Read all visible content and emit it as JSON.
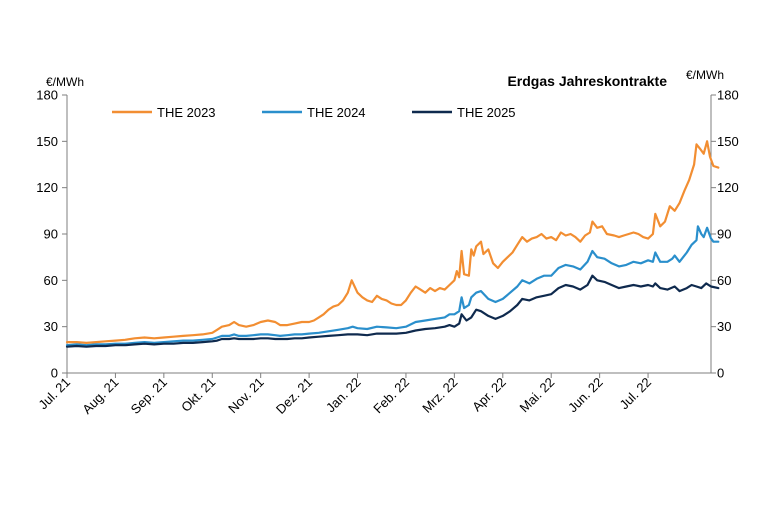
{
  "chart_data": {
    "type": "line",
    "title": "Erdgas Jahreskontrakte",
    "ylabel_left": "€/MWh",
    "ylabel_right": "€/MWh",
    "ylim": [
      0,
      180
    ],
    "yticks": [
      0,
      30,
      60,
      90,
      120,
      150,
      180
    ],
    "grid": false,
    "legend_placement": "top-left",
    "x_categories": [
      "Jul. 21",
      "Aug. 21",
      "Sep. 21",
      "Okt. 21",
      "Nov. 21",
      "Dez. 21",
      "Jan. 22",
      "Feb. 22",
      "Mrz. 22",
      "Apr. 22",
      "Mai. 22",
      "Jun. 22",
      "Jul. 22"
    ],
    "x_end": 13.3,
    "series": [
      {
        "name": "THE 2023",
        "color": "#f28e32",
        "points": [
          [
            0.0,
            20
          ],
          [
            0.2,
            20
          ],
          [
            0.4,
            19.5
          ],
          [
            0.6,
            20
          ],
          [
            0.8,
            20.5
          ],
          [
            1.0,
            21
          ],
          [
            1.2,
            21.5
          ],
          [
            1.4,
            22.5
          ],
          [
            1.6,
            23
          ],
          [
            1.8,
            22.5
          ],
          [
            2.0,
            23
          ],
          [
            2.2,
            23.5
          ],
          [
            2.4,
            24
          ],
          [
            2.6,
            24.5
          ],
          [
            2.8,
            25
          ],
          [
            3.0,
            26
          ],
          [
            3.1,
            28
          ],
          [
            3.2,
            30
          ],
          [
            3.35,
            31
          ],
          [
            3.45,
            33
          ],
          [
            3.55,
            31
          ],
          [
            3.7,
            30
          ],
          [
            3.85,
            31
          ],
          [
            4.0,
            33
          ],
          [
            4.15,
            34
          ],
          [
            4.3,
            33
          ],
          [
            4.4,
            31
          ],
          [
            4.55,
            31
          ],
          [
            4.7,
            32
          ],
          [
            4.85,
            33
          ],
          [
            5.0,
            33
          ],
          [
            5.1,
            34
          ],
          [
            5.2,
            36
          ],
          [
            5.3,
            38
          ],
          [
            5.4,
            41
          ],
          [
            5.5,
            43
          ],
          [
            5.6,
            44
          ],
          [
            5.7,
            47
          ],
          [
            5.8,
            52
          ],
          [
            5.88,
            60
          ],
          [
            5.94,
            56
          ],
          [
            6.0,
            52
          ],
          [
            6.1,
            49
          ],
          [
            6.2,
            47
          ],
          [
            6.3,
            46
          ],
          [
            6.4,
            50
          ],
          [
            6.5,
            48
          ],
          [
            6.6,
            47
          ],
          [
            6.7,
            45
          ],
          [
            6.8,
            44
          ],
          [
            6.9,
            44
          ],
          [
            7.0,
            47
          ],
          [
            7.1,
            52
          ],
          [
            7.2,
            56
          ],
          [
            7.3,
            54
          ],
          [
            7.4,
            52
          ],
          [
            7.5,
            55
          ],
          [
            7.6,
            53
          ],
          [
            7.7,
            55
          ],
          [
            7.8,
            54
          ],
          [
            7.9,
            57
          ],
          [
            8.0,
            60
          ],
          [
            8.05,
            66
          ],
          [
            8.1,
            62
          ],
          [
            8.15,
            79
          ],
          [
            8.2,
            64
          ],
          [
            8.3,
            63
          ],
          [
            8.35,
            80
          ],
          [
            8.4,
            76
          ],
          [
            8.45,
            82
          ],
          [
            8.55,
            85
          ],
          [
            8.6,
            77
          ],
          [
            8.7,
            80
          ],
          [
            8.8,
            71
          ],
          [
            8.9,
            68
          ],
          [
            9.0,
            72
          ],
          [
            9.1,
            75
          ],
          [
            9.2,
            78
          ],
          [
            9.3,
            83
          ],
          [
            9.4,
            88
          ],
          [
            9.5,
            85
          ],
          [
            9.6,
            87
          ],
          [
            9.7,
            88
          ],
          [
            9.8,
            90
          ],
          [
            9.9,
            87
          ],
          [
            10.0,
            88
          ],
          [
            10.1,
            86
          ],
          [
            10.2,
            91
          ],
          [
            10.3,
            89
          ],
          [
            10.4,
            90
          ],
          [
            10.5,
            88
          ],
          [
            10.6,
            85
          ],
          [
            10.7,
            89
          ],
          [
            10.8,
            91
          ],
          [
            10.85,
            98
          ],
          [
            10.95,
            94
          ],
          [
            11.05,
            95
          ],
          [
            11.15,
            90
          ],
          [
            11.3,
            89
          ],
          [
            11.4,
            88
          ],
          [
            11.5,
            89
          ],
          [
            11.6,
            90
          ],
          [
            11.7,
            91
          ],
          [
            11.8,
            90
          ],
          [
            11.9,
            88
          ],
          [
            12.0,
            87
          ],
          [
            12.1,
            90
          ],
          [
            12.15,
            103
          ],
          [
            12.25,
            95
          ],
          [
            12.35,
            98
          ],
          [
            12.45,
            108
          ],
          [
            12.55,
            105
          ],
          [
            12.65,
            110
          ],
          [
            12.75,
            118
          ],
          [
            12.85,
            125
          ],
          [
            12.95,
            135
          ],
          [
            13.0,
            148
          ],
          [
            13.08,
            145
          ],
          [
            13.15,
            142
          ],
          [
            13.22,
            150
          ],
          [
            13.28,
            140
          ],
          [
            13.35,
            134
          ],
          [
            13.45,
            133
          ]
        ]
      },
      {
        "name": "THE 2024",
        "color": "#2a8fcc",
        "points": [
          [
            0.0,
            18
          ],
          [
            0.2,
            18.5
          ],
          [
            0.4,
            18
          ],
          [
            0.6,
            18.5
          ],
          [
            0.8,
            18.5
          ],
          [
            1.0,
            19
          ],
          [
            1.2,
            19
          ],
          [
            1.4,
            19.5
          ],
          [
            1.6,
            20
          ],
          [
            1.8,
            19.5
          ],
          [
            2.0,
            20
          ],
          [
            2.2,
            20.5
          ],
          [
            2.4,
            21
          ],
          [
            2.6,
            21
          ],
          [
            2.8,
            21.5
          ],
          [
            3.0,
            22
          ],
          [
            3.1,
            23
          ],
          [
            3.2,
            24
          ],
          [
            3.35,
            24
          ],
          [
            3.45,
            25
          ],
          [
            3.55,
            24
          ],
          [
            3.7,
            24
          ],
          [
            3.85,
            24.5
          ],
          [
            4.0,
            25
          ],
          [
            4.15,
            25
          ],
          [
            4.3,
            24.5
          ],
          [
            4.4,
            24
          ],
          [
            4.55,
            24.5
          ],
          [
            4.7,
            25
          ],
          [
            4.85,
            25
          ],
          [
            5.0,
            25.5
          ],
          [
            5.2,
            26
          ],
          [
            5.4,
            27
          ],
          [
            5.6,
            28
          ],
          [
            5.8,
            29
          ],
          [
            5.9,
            30
          ],
          [
            6.0,
            29
          ],
          [
            6.2,
            28.5
          ],
          [
            6.4,
            30
          ],
          [
            6.6,
            29.5
          ],
          [
            6.8,
            29
          ],
          [
            7.0,
            30
          ],
          [
            7.2,
            33
          ],
          [
            7.4,
            34
          ],
          [
            7.6,
            35
          ],
          [
            7.8,
            36
          ],
          [
            7.9,
            38
          ],
          [
            8.0,
            38
          ],
          [
            8.1,
            40
          ],
          [
            8.15,
            49
          ],
          [
            8.2,
            42
          ],
          [
            8.3,
            44
          ],
          [
            8.35,
            49
          ],
          [
            8.45,
            52
          ],
          [
            8.55,
            53
          ],
          [
            8.7,
            48
          ],
          [
            8.85,
            46
          ],
          [
            9.0,
            48
          ],
          [
            9.15,
            52
          ],
          [
            9.3,
            56
          ],
          [
            9.4,
            60
          ],
          [
            9.55,
            58
          ],
          [
            9.7,
            61
          ],
          [
            9.85,
            63
          ],
          [
            10.0,
            63
          ],
          [
            10.15,
            68
          ],
          [
            10.3,
            70
          ],
          [
            10.45,
            69
          ],
          [
            10.6,
            67
          ],
          [
            10.75,
            72
          ],
          [
            10.85,
            79
          ],
          [
            10.95,
            75
          ],
          [
            11.1,
            74
          ],
          [
            11.25,
            71
          ],
          [
            11.4,
            69
          ],
          [
            11.55,
            70
          ],
          [
            11.7,
            72
          ],
          [
            11.85,
            71
          ],
          [
            12.0,
            73
          ],
          [
            12.1,
            72
          ],
          [
            12.15,
            78
          ],
          [
            12.25,
            72
          ],
          [
            12.4,
            72
          ],
          [
            12.5,
            74
          ],
          [
            12.55,
            76
          ],
          [
            12.65,
            72
          ],
          [
            12.8,
            78
          ],
          [
            12.9,
            83
          ],
          [
            13.0,
            86
          ],
          [
            13.03,
            95
          ],
          [
            13.1,
            90
          ],
          [
            13.15,
            88
          ],
          [
            13.22,
            94
          ],
          [
            13.3,
            87
          ],
          [
            13.35,
            85
          ],
          [
            13.45,
            85
          ]
        ]
      },
      {
        "name": "THE 2025",
        "color": "#0f2a4e",
        "points": [
          [
            0.0,
            17
          ],
          [
            0.2,
            17.5
          ],
          [
            0.4,
            17
          ],
          [
            0.6,
            17.5
          ],
          [
            0.8,
            17.5
          ],
          [
            1.0,
            18
          ],
          [
            1.2,
            18
          ],
          [
            1.4,
            18.5
          ],
          [
            1.6,
            19
          ],
          [
            1.8,
            18.5
          ],
          [
            2.0,
            19
          ],
          [
            2.2,
            19
          ],
          [
            2.4,
            19.5
          ],
          [
            2.6,
            19.5
          ],
          [
            2.8,
            20
          ],
          [
            3.0,
            20.5
          ],
          [
            3.1,
            21
          ],
          [
            3.2,
            22
          ],
          [
            3.35,
            22
          ],
          [
            3.45,
            22.5
          ],
          [
            3.55,
            22
          ],
          [
            3.7,
            22
          ],
          [
            3.85,
            22
          ],
          [
            4.0,
            22.5
          ],
          [
            4.15,
            22.5
          ],
          [
            4.3,
            22
          ],
          [
            4.4,
            22
          ],
          [
            4.55,
            22
          ],
          [
            4.7,
            22.5
          ],
          [
            4.85,
            22.5
          ],
          [
            5.0,
            23
          ],
          [
            5.2,
            23.5
          ],
          [
            5.4,
            24
          ],
          [
            5.6,
            24.5
          ],
          [
            5.8,
            25
          ],
          [
            6.0,
            25
          ],
          [
            6.2,
            24.5
          ],
          [
            6.4,
            25.5
          ],
          [
            6.6,
            25.5
          ],
          [
            6.8,
            25.5
          ],
          [
            7.0,
            26
          ],
          [
            7.2,
            27.5
          ],
          [
            7.4,
            28.5
          ],
          [
            7.6,
            29
          ],
          [
            7.8,
            30
          ],
          [
            7.9,
            31
          ],
          [
            8.0,
            30
          ],
          [
            8.1,
            32
          ],
          [
            8.15,
            38
          ],
          [
            8.25,
            34
          ],
          [
            8.35,
            36
          ],
          [
            8.45,
            41
          ],
          [
            8.55,
            40
          ],
          [
            8.7,
            37
          ],
          [
            8.85,
            35
          ],
          [
            9.0,
            37
          ],
          [
            9.15,
            40
          ],
          [
            9.3,
            44
          ],
          [
            9.4,
            48
          ],
          [
            9.55,
            47
          ],
          [
            9.7,
            49
          ],
          [
            9.85,
            50
          ],
          [
            10.0,
            51
          ],
          [
            10.15,
            55
          ],
          [
            10.3,
            57
          ],
          [
            10.45,
            56
          ],
          [
            10.6,
            54
          ],
          [
            10.75,
            57
          ],
          [
            10.85,
            63
          ],
          [
            10.95,
            60
          ],
          [
            11.1,
            59
          ],
          [
            11.25,
            57
          ],
          [
            11.4,
            55
          ],
          [
            11.55,
            56
          ],
          [
            11.7,
            57
          ],
          [
            11.85,
            56
          ],
          [
            12.0,
            57
          ],
          [
            12.1,
            56
          ],
          [
            12.15,
            58
          ],
          [
            12.25,
            55
          ],
          [
            12.4,
            54
          ],
          [
            12.55,
            56
          ],
          [
            12.65,
            53
          ],
          [
            12.8,
            55
          ],
          [
            12.9,
            57
          ],
          [
            13.0,
            56
          ],
          [
            13.1,
            55
          ],
          [
            13.2,
            58
          ],
          [
            13.3,
            56
          ],
          [
            13.45,
            55
          ]
        ]
      }
    ]
  }
}
